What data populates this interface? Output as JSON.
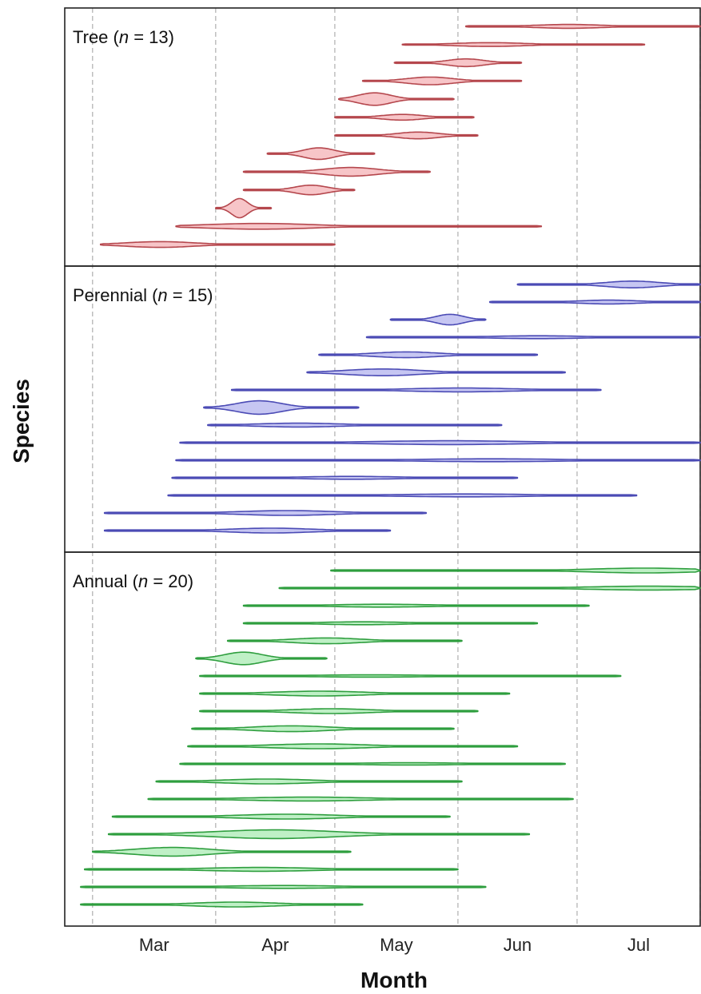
{
  "chart_data": {
    "type": "violin-range",
    "xlabel": "Month",
    "ylabel": "Species",
    "x_ticks": [
      "Mar",
      "Apr",
      "May",
      "Jun",
      "Jul"
    ],
    "x_unit": "day of year",
    "x_range": [
      53,
      213
    ],
    "month_boundaries": [
      60,
      91,
      121,
      152,
      182,
      213
    ],
    "grid": "vertical dashed at month boundaries",
    "panels": [
      {
        "label_prefix": "Tree (",
        "label_italic": "n",
        "label_suffix": " = 13)",
        "n": 13,
        "fill": "#f7c5c8",
        "stroke": "#b5474d",
        "species": [
          {
            "start": 154,
            "end": 213,
            "peak": 180,
            "width": 0.2
          },
          {
            "start": 138,
            "end": 199,
            "peak": 160,
            "width": 0.2
          },
          {
            "start": 136,
            "end": 168,
            "peak": 154,
            "width": 0.4
          },
          {
            "start": 128,
            "end": 168,
            "peak": 145,
            "width": 0.4
          },
          {
            "start": 122,
            "end": 151,
            "peak": 131,
            "width": 0.65
          },
          {
            "start": 121,
            "end": 156,
            "peak": 138,
            "width": 0.3
          },
          {
            "start": 121,
            "end": 157,
            "peak": 142,
            "width": 0.35
          },
          {
            "start": 104,
            "end": 131,
            "peak": 117,
            "width": 0.6
          },
          {
            "start": 98,
            "end": 145,
            "peak": 125,
            "width": 0.45
          },
          {
            "start": 98,
            "end": 126,
            "peak": 115,
            "width": 0.5
          },
          {
            "start": 91,
            "end": 105,
            "peak": 97,
            "width": 1.0
          },
          {
            "start": 81,
            "end": 173,
            "peak": 102,
            "width": 0.3
          },
          {
            "start": 62,
            "end": 121,
            "peak": 77,
            "width": 0.3
          }
        ]
      },
      {
        "label_prefix": "Perennial (",
        "label_italic": "n",
        "label_suffix": " = 15)",
        "n": 15,
        "fill": "#c6c6f2",
        "stroke": "#4b4bb5",
        "species": [
          {
            "start": 167,
            "end": 213,
            "peak": 196,
            "width": 0.35
          },
          {
            "start": 160,
            "end": 213,
            "peak": 190,
            "width": 0.2
          },
          {
            "start": 135,
            "end": 159,
            "peak": 150,
            "width": 0.55
          },
          {
            "start": 129,
            "end": 213,
            "peak": 172,
            "width": 0.15
          },
          {
            "start": 117,
            "end": 172,
            "peak": 139,
            "width": 0.3
          },
          {
            "start": 114,
            "end": 179,
            "peak": 133,
            "width": 0.35
          },
          {
            "start": 95,
            "end": 188,
            "peak": 153,
            "width": 0.2
          },
          {
            "start": 88,
            "end": 127,
            "peak": 102,
            "width": 0.7
          },
          {
            "start": 89,
            "end": 163,
            "peak": 112,
            "width": 0.2
          },
          {
            "start": 82,
            "end": 213,
            "peak": 150,
            "width": 0.2
          },
          {
            "start": 81,
            "end": 213,
            "peak": 160,
            "width": 0.15
          },
          {
            "start": 80,
            "end": 167,
            "peak": 125,
            "width": 0.15
          },
          {
            "start": 79,
            "end": 197,
            "peak": 154,
            "width": 0.15
          },
          {
            "start": 63,
            "end": 144,
            "peak": 109,
            "width": 0.25
          },
          {
            "start": 63,
            "end": 135,
            "peak": 105,
            "width": 0.25
          }
        ]
      },
      {
        "label_prefix": "Annual (",
        "label_italic": "n",
        "label_suffix": " = 20)",
        "n": 20,
        "fill": "#bff0c6",
        "stroke": "#2e9e3e",
        "species": [
          {
            "start": 120,
            "end": 213,
            "peak": 199,
            "width": 0.25
          },
          {
            "start": 107,
            "end": 213,
            "peak": 200,
            "width": 0.2
          },
          {
            "start": 98,
            "end": 185,
            "peak": 133,
            "width": 0.15
          },
          {
            "start": 98,
            "end": 172,
            "peak": 128,
            "width": 0.15
          },
          {
            "start": 94,
            "end": 153,
            "peak": 119,
            "width": 0.3
          },
          {
            "start": 86,
            "end": 119,
            "peak": 98,
            "width": 0.65
          },
          {
            "start": 87,
            "end": 193,
            "peak": 130,
            "width": 0.12
          },
          {
            "start": 87,
            "end": 165,
            "peak": 117,
            "width": 0.25
          },
          {
            "start": 87,
            "end": 157,
            "peak": 120,
            "width": 0.25
          },
          {
            "start": 85,
            "end": 151,
            "peak": 110,
            "width": 0.3
          },
          {
            "start": 84,
            "end": 167,
            "peak": 117,
            "width": 0.25
          },
          {
            "start": 82,
            "end": 179,
            "peak": 140,
            "width": 0.12
          },
          {
            "start": 76,
            "end": 153,
            "peak": 104,
            "width": 0.25
          },
          {
            "start": 74,
            "end": 181,
            "peak": 114,
            "width": 0.2
          },
          {
            "start": 65,
            "end": 150,
            "peak": 109,
            "width": 0.25
          },
          {
            "start": 64,
            "end": 170,
            "peak": 106,
            "width": 0.45
          },
          {
            "start": 60,
            "end": 125,
            "peak": 80,
            "width": 0.45
          },
          {
            "start": 58,
            "end": 152,
            "peak": 102,
            "width": 0.2
          },
          {
            "start": 57,
            "end": 159,
            "peak": 108,
            "width": 0.15
          },
          {
            "start": 57,
            "end": 128,
            "peak": 96,
            "width": 0.25
          }
        ]
      }
    ]
  }
}
